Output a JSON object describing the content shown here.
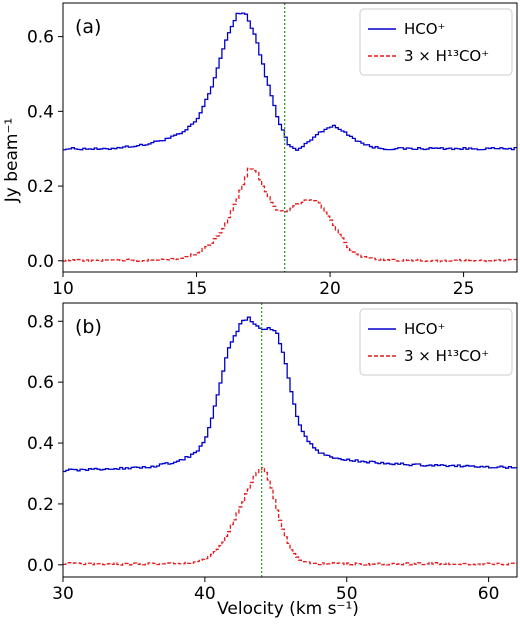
{
  "figure": {
    "xlabel": "Velocity (km s⁻¹)",
    "ylabel": "Jy beam⁻¹"
  },
  "chart_data": [
    {
      "type": "line",
      "panel_label": "(a)",
      "xlim": [
        10,
        27
      ],
      "ylim": [
        -0.03,
        0.69
      ],
      "xticks": [
        10,
        15,
        20,
        25
      ],
      "yticks": [
        0.0,
        0.2,
        0.4,
        0.6
      ],
      "ytick_labels": [
        "0.0",
        "0.2",
        "0.4",
        "0.6"
      ],
      "vline": {
        "x": 18.3,
        "color": "#2ca02c",
        "style": "dotted"
      },
      "legend_position": "top-right",
      "series": [
        {
          "name": "HCO⁺",
          "color": "#0000cc",
          "linestyle": "solid",
          "step": true,
          "points": [
            [
              10,
              0.3
            ],
            [
              11,
              0.3
            ],
            [
              11.5,
              0.298
            ],
            [
              12,
              0.303
            ],
            [
              13,
              0.31
            ],
            [
              14,
              0.33
            ],
            [
              14.5,
              0.345
            ],
            [
              15,
              0.38
            ],
            [
              15.5,
              0.46
            ],
            [
              16,
              0.58
            ],
            [
              16.5,
              0.665
            ],
            [
              16.8,
              0.66
            ],
            [
              17.2,
              0.59
            ],
            [
              17.6,
              0.48
            ],
            [
              18,
              0.38
            ],
            [
              18.4,
              0.31
            ],
            [
              18.7,
              0.295
            ],
            [
              19,
              0.31
            ],
            [
              19.4,
              0.335
            ],
            [
              19.8,
              0.355
            ],
            [
              20.1,
              0.36
            ],
            [
              20.5,
              0.345
            ],
            [
              21,
              0.32
            ],
            [
              21.5,
              0.305
            ],
            [
              22,
              0.3
            ],
            [
              23,
              0.3
            ],
            [
              24,
              0.301
            ],
            [
              25,
              0.3
            ],
            [
              26,
              0.3
            ],
            [
              27,
              0.3
            ]
          ]
        },
        {
          "name": "3 × H¹³CO⁺",
          "color": "#e31a1c",
          "linestyle": "dashed",
          "step": true,
          "points": [
            [
              10,
              0.002
            ],
            [
              11,
              0.0
            ],
            [
              12,
              0.002
            ],
            [
              13,
              0.001
            ],
            [
              14,
              0.004
            ],
            [
              14.5,
              0.01
            ],
            [
              15,
              0.02
            ],
            [
              15.5,
              0.045
            ],
            [
              16,
              0.09
            ],
            [
              16.5,
              0.17
            ],
            [
              16.9,
              0.245
            ],
            [
              17.2,
              0.24
            ],
            [
              17.5,
              0.19
            ],
            [
              17.9,
              0.14
            ],
            [
              18.3,
              0.13
            ],
            [
              18.7,
              0.15
            ],
            [
              19.1,
              0.165
            ],
            [
              19.5,
              0.16
            ],
            [
              19.9,
              0.12
            ],
            [
              20.3,
              0.07
            ],
            [
              20.7,
              0.03
            ],
            [
              21.2,
              0.01
            ],
            [
              22,
              0.002
            ],
            [
              23,
              0.001
            ],
            [
              24,
              0.0
            ],
            [
              25,
              0.002
            ],
            [
              26,
              0.0
            ],
            [
              27,
              0.003
            ]
          ]
        }
      ]
    },
    {
      "type": "line",
      "panel_label": "(b)",
      "xlim": [
        30,
        62
      ],
      "ylim": [
        -0.04,
        0.86
      ],
      "xticks": [
        30,
        40,
        50,
        60
      ],
      "yticks": [
        0.0,
        0.2,
        0.4,
        0.6,
        0.8
      ],
      "ytick_labels": [
        "0.0",
        "0.2",
        "0.4",
        "0.6",
        "0.8"
      ],
      "vline": {
        "x": 44.0,
        "color": "#2ca02c",
        "style": "dotted"
      },
      "legend_position": "top-right",
      "series": [
        {
          "name": "HCO⁺",
          "color": "#0000cc",
          "linestyle": "solid",
          "step": true,
          "points": [
            [
              30,
              0.31
            ],
            [
              33,
              0.315
            ],
            [
              36,
              0.32
            ],
            [
              37,
              0.33
            ],
            [
              38,
              0.34
            ],
            [
              39,
              0.36
            ],
            [
              39.5,
              0.38
            ],
            [
              40,
              0.42
            ],
            [
              40.5,
              0.5
            ],
            [
              41,
              0.6
            ],
            [
              41.5,
              0.7
            ],
            [
              42,
              0.75
            ],
            [
              42.5,
              0.8
            ],
            [
              43,
              0.81
            ],
            [
              43.5,
              0.79
            ],
            [
              44,
              0.77
            ],
            [
              44.5,
              0.78
            ],
            [
              45,
              0.76
            ],
            [
              45.5,
              0.68
            ],
            [
              46,
              0.57
            ],
            [
              46.5,
              0.47
            ],
            [
              47,
              0.42
            ],
            [
              47.5,
              0.39
            ],
            [
              48,
              0.37
            ],
            [
              48.5,
              0.36
            ],
            [
              49,
              0.35
            ],
            [
              50,
              0.345
            ],
            [
              51,
              0.34
            ],
            [
              52,
              0.335
            ],
            [
              54,
              0.33
            ],
            [
              57,
              0.325
            ],
            [
              62,
              0.32
            ]
          ]
        },
        {
          "name": "3 × H¹³CO⁺",
          "color": "#e31a1c",
          "linestyle": "dashed",
          "step": true,
          "points": [
            [
              30,
              0.005
            ],
            [
              33,
              0.002
            ],
            [
              36,
              0.004
            ],
            [
              38,
              0.003
            ],
            [
              39,
              0.008
            ],
            [
              40,
              0.02
            ],
            [
              41,
              0.06
            ],
            [
              41.5,
              0.1
            ],
            [
              42,
              0.15
            ],
            [
              42.5,
              0.2
            ],
            [
              43,
              0.25
            ],
            [
              43.5,
              0.3
            ],
            [
              44,
              0.32
            ],
            [
              44.5,
              0.27
            ],
            [
              45,
              0.18
            ],
            [
              45.5,
              0.1
            ],
            [
              46,
              0.05
            ],
            [
              46.5,
              0.02
            ],
            [
              47,
              0.01
            ],
            [
              48,
              0.004
            ],
            [
              50,
              0.003
            ],
            [
              53,
              0.002
            ],
            [
              56,
              0.004
            ],
            [
              59,
              0.002
            ],
            [
              62,
              0.003
            ]
          ]
        }
      ]
    }
  ]
}
